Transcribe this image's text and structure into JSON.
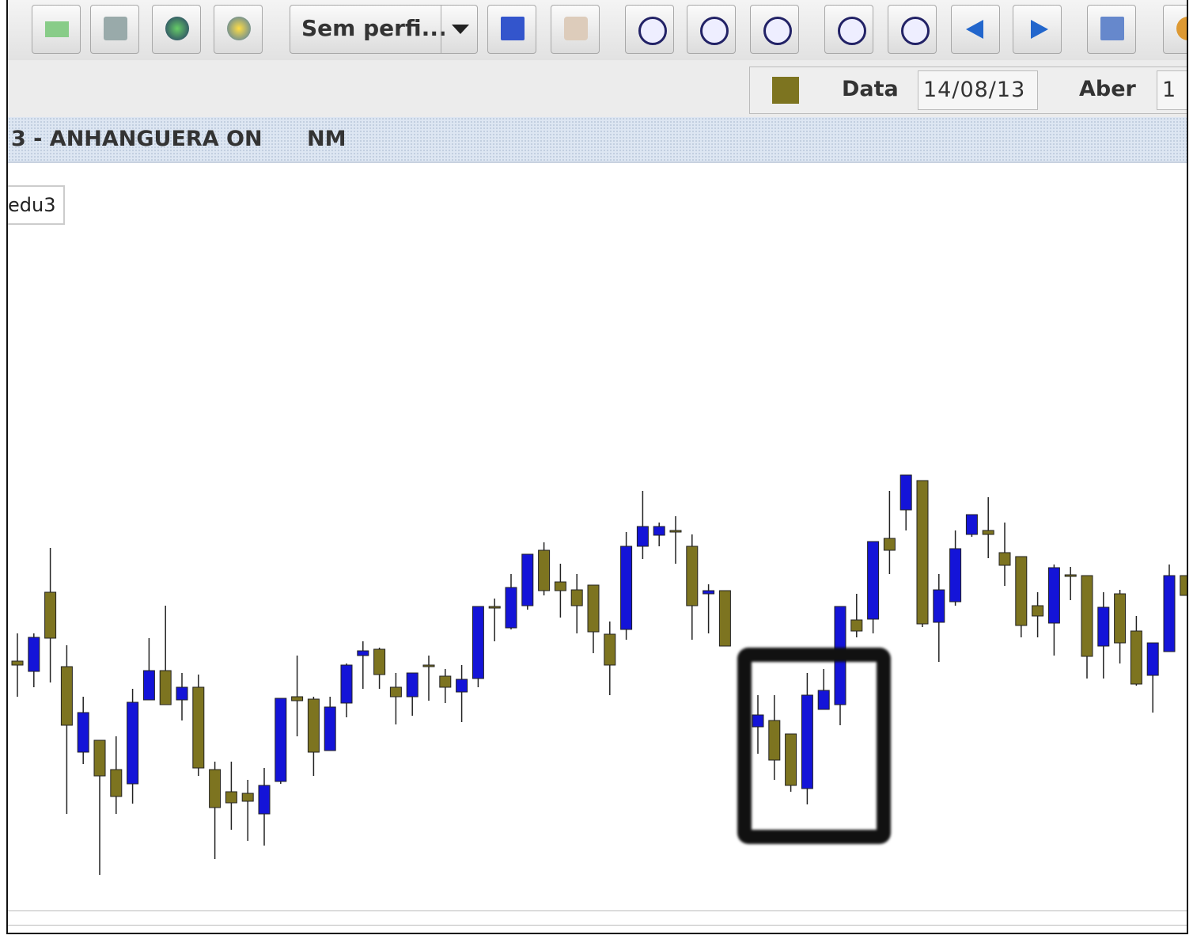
{
  "toolbar": {
    "profile": "Sem perfi...",
    "date_label": "Data",
    "date_value": "14/08/13",
    "open_label": "Aber",
    "open_value": "1"
  },
  "title_bar": {
    "title": "3 - ANHANGUERA ON",
    "segment": "NM"
  },
  "chart_tag": "edu3",
  "chart_data": {
    "type": "candlestick",
    "up_color": "#1414d8",
    "down_color": "#7d7420",
    "open": [
      315,
      302,
      402,
      308,
      200,
      215,
      178,
      160,
      266,
      303,
      266,
      282,
      178,
      150,
      148,
      122,
      163,
      270,
      267,
      202,
      262,
      322,
      330,
      282,
      270,
      310,
      296,
      276,
      293,
      384,
      357,
      385,
      455,
      415,
      405,
      411,
      349,
      355,
      460,
      474,
      480,
      460,
      400,
      404,
      null,
      232,
      240,
      223,
      154,
      254,
      260,
      367,
      368,
      470,
      506,
      543,
      364,
      390,
      475,
      480,
      452,
      447,
      385,
      363,
      424,
      423,
      334,
      400,
      353,
      297,
      327,
      423
    ],
    "high": [
      350,
      350,
      458,
      335,
      270,
      215,
      220,
      280,
      344,
      385,
      300,
      298,
      188,
      188,
      165,
      180,
      268,
      322,
      270,
      270,
      312,
      340,
      332,
      300,
      300,
      322,
      305,
      310,
      384,
      394,
      425,
      450,
      465,
      438,
      425,
      411,
      365,
      478,
      530,
      490,
      498,
      475,
      412,
      404,
      null,
      272,
      272,
      223,
      300,
      305,
      384,
      400,
      466,
      530,
      550,
      543,
      425,
      480,
      500,
      522,
      490,
      447,
      402,
      437,
      434,
      423,
      402,
      405,
      372,
      338,
      437,
      423
    ],
    "low": [
      270,
      282,
      288,
      122,
      185,
      45,
      122,
      135,
      266,
      260,
      240,
      170,
      65,
      102,
      88,
      82,
      160,
      220,
      170,
      202,
      244,
      280,
      280,
      235,
      246,
      265,
      262,
      238,
      282,
      340,
      355,
      380,
      398,
      370,
      350,
      325,
      272,
      342,
      444,
      460,
      438,
      342,
      350,
      334,
      null,
      198,
      165,
      150,
      134,
      254,
      234,
      345,
      350,
      425,
      480,
      358,
      314,
      385,
      472,
      445,
      410,
      345,
      345,
      322,
      392,
      293,
      293,
      312,
      284,
      250,
      327,
      398
    ],
    "close": [
      310,
      345,
      344,
      234,
      250,
      170,
      144,
      263,
      303,
      260,
      282,
      180,
      130,
      136,
      138,
      158,
      268,
      265,
      200,
      257,
      310,
      328,
      298,
      270,
      300,
      310,
      282,
      292,
      384,
      384,
      408,
      450,
      404,
      404,
      385,
      352,
      310,
      460,
      485,
      485,
      480,
      385,
      404,
      334,
      null,
      247,
      190,
      158,
      272,
      278,
      384,
      353,
      466,
      455,
      550,
      362,
      405,
      457,
      500,
      475,
      436,
      360,
      372,
      433,
      424,
      321,
      383,
      338,
      286,
      338,
      423,
      398
    ]
  }
}
